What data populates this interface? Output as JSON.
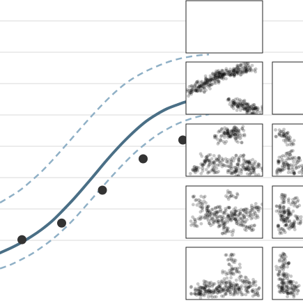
{
  "colors": {
    "background": "#ffffff",
    "grid": "#d9d9d9",
    "fit_line": "#4a6f86",
    "band_line": "#8fb0c6",
    "points": "#333333",
    "scatter_dots": "#000000",
    "panel_border": "#222222"
  },
  "chart_data": [
    {
      "type": "line",
      "title": "",
      "xlabel": "",
      "ylabel": "",
      "grid": "horizontal",
      "legend": "none",
      "xlim": [
        0,
        10
      ],
      "ylim": [
        0,
        8
      ],
      "grid_y": [
        1,
        2,
        3,
        4,
        5,
        6,
        7,
        8
      ],
      "series": [
        {
          "role": "fit",
          "style": "solid",
          "x": [
            0,
            0.5,
            1,
            1.5,
            2,
            2.5,
            3,
            3.5,
            4,
            4.5,
            5,
            5.5,
            6,
            6.5,
            7,
            7.5,
            8,
            8.5,
            9,
            9.5,
            10
          ],
          "y": [
            0.6,
            0.75,
            0.92,
            1.12,
            1.35,
            1.62,
            1.95,
            2.3,
            2.68,
            3.07,
            3.47,
            3.85,
            4.2,
            4.52,
            4.8,
            5.02,
            5.2,
            5.33,
            5.44,
            5.52,
            5.58
          ]
        },
        {
          "role": "upper-band",
          "style": "dashed",
          "x": [
            0,
            0.5,
            1,
            1.5,
            2,
            2.5,
            3,
            3.5,
            4,
            4.5,
            5,
            5.5,
            6,
            6.5,
            7,
            7.5,
            8,
            8.5,
            9,
            9.5,
            10
          ],
          "y": [
            2.2,
            2.4,
            2.62,
            2.9,
            3.2,
            3.55,
            3.92,
            4.3,
            4.68,
            5.05,
            5.4,
            5.72,
            6.0,
            6.22,
            6.4,
            6.55,
            6.68,
            6.78,
            6.85,
            6.9,
            6.93
          ]
        },
        {
          "role": "lower-band",
          "style": "dashed",
          "x": [
            0,
            0.5,
            1,
            1.5,
            2,
            2.5,
            3,
            3.5,
            4,
            4.5,
            5,
            5.5,
            6,
            6.5,
            7,
            7.5,
            8,
            8.5,
            9,
            9.5,
            10
          ],
          "y": [
            0.1,
            0.22,
            0.38,
            0.56,
            0.78,
            1.03,
            1.32,
            1.65,
            2.02,
            2.4,
            2.78,
            3.15,
            3.5,
            3.82,
            4.1,
            4.35,
            4.55,
            4.72,
            4.85,
            4.95,
            5.02
          ]
        },
        {
          "role": "observations",
          "style": "markers",
          "x": [
            1.05,
            2.95,
            4.9,
            6.85,
            8.75
          ],
          "y": [
            1.02,
            1.55,
            2.6,
            3.6,
            4.2
          ]
        }
      ]
    },
    {
      "type": "scatter",
      "title": "",
      "layout": "scatterplot-matrix",
      "rows": 5,
      "columns": 2,
      "panels": [
        {
          "row": 1,
          "col": 1,
          "points": []
        },
        {
          "row": 2,
          "col": 1,
          "points": [
            [
              0.05,
              0.42
            ],
            [
              0.1,
              0.45
            ],
            [
              0.14,
              0.5
            ],
            [
              0.18,
              0.55
            ],
            [
              0.22,
              0.58
            ],
            [
              0.26,
              0.62
            ],
            [
              0.3,
              0.66
            ],
            [
              0.34,
              0.7
            ],
            [
              0.38,
              0.72
            ],
            [
              0.42,
              0.74
            ],
            [
              0.46,
              0.78
            ],
            [
              0.5,
              0.8
            ],
            [
              0.55,
              0.82
            ],
            [
              0.6,
              0.84
            ],
            [
              0.65,
              0.85
            ],
            [
              0.7,
              0.88
            ],
            [
              0.75,
              0.9
            ],
            [
              0.8,
              0.92
            ],
            [
              0.85,
              0.93
            ],
            [
              0.62,
              0.2
            ],
            [
              0.66,
              0.17
            ],
            [
              0.7,
              0.15
            ],
            [
              0.75,
              0.13
            ],
            [
              0.8,
              0.1
            ],
            [
              0.85,
              0.08
            ],
            [
              0.9,
              0.07
            ],
            [
              0.95,
              0.05
            ]
          ]
        },
        {
          "row": 2,
          "col": 2,
          "points": []
        },
        {
          "row": 3,
          "col": 1,
          "points": [
            [
              0.5,
              0.85
            ],
            [
              0.55,
              0.9
            ],
            [
              0.6,
              0.88
            ],
            [
              0.65,
              0.82
            ],
            [
              0.7,
              0.9
            ],
            [
              0.72,
              0.75
            ],
            [
              0.45,
              0.7
            ],
            [
              0.3,
              0.2
            ],
            [
              0.2,
              0.12
            ],
            [
              0.1,
              0.08
            ],
            [
              0.55,
              0.25
            ],
            [
              0.6,
              0.12
            ],
            [
              0.7,
              0.3
            ],
            [
              0.75,
              0.18
            ],
            [
              0.8,
              0.1
            ],
            [
              0.85,
              0.22
            ],
            [
              0.9,
              0.08
            ],
            [
              0.95,
              0.15
            ],
            [
              0.65,
              0.05
            ],
            [
              0.4,
              0.3
            ],
            [
              0.35,
              0.1
            ],
            [
              0.25,
              0.35
            ]
          ]
        },
        {
          "row": 3,
          "col": 2,
          "points": [
            [
              0.1,
              0.85
            ],
            [
              0.2,
              0.8
            ],
            [
              0.3,
              0.7
            ],
            [
              0.15,
              0.3
            ],
            [
              0.25,
              0.2
            ],
            [
              0.35,
              0.1
            ],
            [
              0.45,
              0.25
            ],
            [
              0.55,
              0.1
            ],
            [
              0.1,
              0.1
            ],
            [
              0.3,
              0.4
            ]
          ]
        },
        {
          "row": 4,
          "col": 1,
          "points": [
            [
              0.55,
              0.4
            ],
            [
              0.6,
              0.5
            ],
            [
              0.65,
              0.35
            ],
            [
              0.7,
              0.45
            ],
            [
              0.5,
              0.25
            ],
            [
              0.45,
              0.55
            ],
            [
              0.4,
              0.4
            ],
            [
              0.75,
              0.3
            ],
            [
              0.8,
              0.5
            ],
            [
              0.35,
              0.3
            ],
            [
              0.3,
              0.5
            ],
            [
              0.25,
              0.45
            ],
            [
              0.2,
              0.6
            ],
            [
              0.15,
              0.75
            ],
            [
              0.1,
              0.3
            ],
            [
              0.85,
              0.2
            ],
            [
              0.9,
              0.45
            ],
            [
              0.95,
              0.6
            ],
            [
              0.6,
              0.85
            ],
            [
              0.55,
              0.1
            ]
          ]
        },
        {
          "row": 4,
          "col": 2,
          "points": [
            [
              0.15,
              0.4
            ],
            [
              0.2,
              0.5
            ],
            [
              0.25,
              0.3
            ],
            [
              0.3,
              0.45
            ],
            [
              0.1,
              0.6
            ],
            [
              0.35,
              0.2
            ],
            [
              0.4,
              0.7
            ],
            [
              0.2,
              0.8
            ],
            [
              0.45,
              0.35
            ],
            [
              0.15,
              0.15
            ]
          ]
        },
        {
          "row": 5,
          "col": 1,
          "points": [
            [
              0.55,
              0.15
            ],
            [
              0.6,
              0.25
            ],
            [
              0.65,
              0.1
            ],
            [
              0.7,
              0.2
            ],
            [
              0.5,
              0.3
            ],
            [
              0.45,
              0.12
            ],
            [
              0.4,
              0.2
            ],
            [
              0.75,
              0.35
            ],
            [
              0.8,
              0.15
            ],
            [
              0.35,
              0.1
            ],
            [
              0.3,
              0.25
            ],
            [
              0.25,
              0.12
            ],
            [
              0.2,
              0.2
            ],
            [
              0.15,
              0.08
            ],
            [
              0.1,
              0.15
            ],
            [
              0.85,
              0.3
            ],
            [
              0.9,
              0.12
            ],
            [
              0.65,
              0.6
            ],
            [
              0.55,
              0.5
            ],
            [
              0.6,
              0.8
            ]
          ]
        },
        {
          "row": 5,
          "col": 2,
          "points": [
            [
              0.1,
              0.2
            ],
            [
              0.15,
              0.3
            ],
            [
              0.2,
              0.15
            ],
            [
              0.25,
              0.4
            ],
            [
              0.3,
              0.1
            ],
            [
              0.35,
              0.25
            ],
            [
              0.1,
              0.55
            ],
            [
              0.2,
              0.7
            ],
            [
              0.4,
              0.15
            ],
            [
              0.15,
              0.85
            ]
          ]
        }
      ]
    }
  ]
}
